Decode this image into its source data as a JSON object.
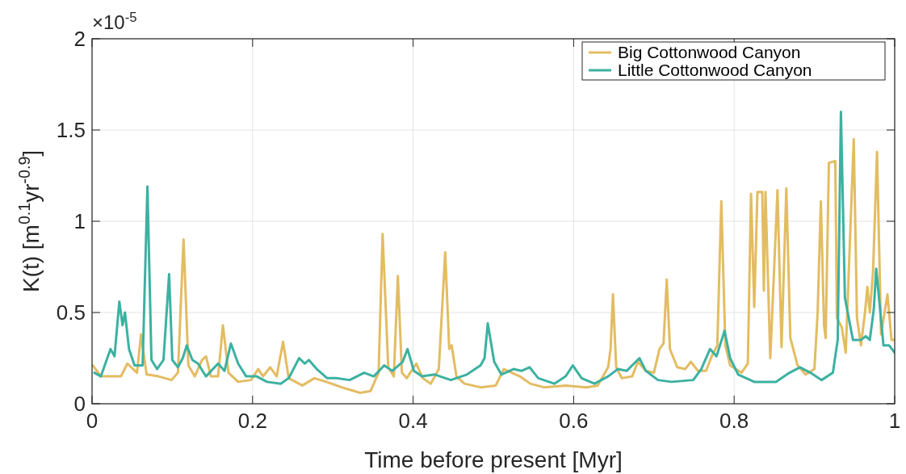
{
  "chart_data": {
    "type": "line",
    "xlabel": "Time before present [Myr]",
    "ylabel": "K(t) [m$^{0.1}$yr$^{-0.9}$]",
    "annotations": [
      "×10$^{-5}$"
    ],
    "xlim": [
      0,
      1
    ],
    "xticks": [
      0,
      0.2,
      0.4,
      0.6,
      0.8,
      1
    ],
    "ylim": [
      0,
      2
    ],
    "yticks": [
      0,
      0.5,
      1,
      1.5,
      2
    ],
    "grid": true,
    "legend": "top right",
    "line_style": "solid",
    "marker": "none",
    "series": [
      {
        "name": "Big Cottonwood Canyon",
        "color": "#e3bc62",
        "x": [
          0.001,
          0.011,
          0.036,
          0.044,
          0.056,
          0.061,
          0.068,
          0.083,
          0.099,
          0.107,
          0.114,
          0.12,
          0.128,
          0.137,
          0.142,
          0.148,
          0.157,
          0.163,
          0.17,
          0.182,
          0.198,
          0.207,
          0.213,
          0.222,
          0.23,
          0.238,
          0.245,
          0.262,
          0.277,
          0.292,
          0.311,
          0.334,
          0.347,
          0.357,
          0.362,
          0.369,
          0.376,
          0.381,
          0.386,
          0.392,
          0.404,
          0.412,
          0.422,
          0.432,
          0.44,
          0.445,
          0.448,
          0.454,
          0.464,
          0.484,
          0.503,
          0.513,
          0.533,
          0.546,
          0.563,
          0.59,
          0.616,
          0.63,
          0.643,
          0.646,
          0.649,
          0.653,
          0.66,
          0.673,
          0.68,
          0.69,
          0.7,
          0.707,
          0.712,
          0.716,
          0.72,
          0.729,
          0.739,
          0.746,
          0.755,
          0.765,
          0.772,
          0.779,
          0.784,
          0.789,
          0.795,
          0.809,
          0.817,
          0.821,
          0.825,
          0.829,
          0.835,
          0.837,
          0.839,
          0.845,
          0.854,
          0.859,
          0.865,
          0.87,
          0.879,
          0.889,
          0.9,
          0.904,
          0.908,
          0.912,
          0.914,
          0.918,
          0.926,
          0.928,
          0.934,
          0.939,
          0.949,
          0.953,
          0.958,
          0.963,
          0.966,
          0.969,
          0.973,
          0.978,
          0.983,
          0.991,
          0.996,
          1.0
        ],
        "values": [
          0.21,
          0.15,
          0.15,
          0.22,
          0.17,
          0.38,
          0.16,
          0.15,
          0.13,
          0.17,
          0.9,
          0.21,
          0.15,
          0.24,
          0.26,
          0.15,
          0.15,
          0.43,
          0.17,
          0.12,
          0.13,
          0.19,
          0.15,
          0.2,
          0.15,
          0.34,
          0.14,
          0.1,
          0.14,
          0.12,
          0.09,
          0.06,
          0.07,
          0.17,
          0.93,
          0.2,
          0.15,
          0.7,
          0.17,
          0.14,
          0.22,
          0.14,
          0.11,
          0.19,
          0.83,
          0.3,
          0.32,
          0.15,
          0.11,
          0.09,
          0.1,
          0.19,
          0.15,
          0.11,
          0.09,
          0.1,
          0.09,
          0.1,
          0.2,
          0.3,
          0.6,
          0.2,
          0.14,
          0.15,
          0.23,
          0.18,
          0.17,
          0.3,
          0.33,
          0.68,
          0.3,
          0.2,
          0.19,
          0.23,
          0.18,
          0.18,
          0.26,
          0.32,
          1.11,
          0.32,
          0.21,
          0.17,
          0.22,
          1.15,
          0.53,
          1.16,
          1.16,
          0.62,
          1.16,
          0.25,
          1.17,
          0.31,
          1.18,
          0.36,
          0.21,
          0.16,
          0.19,
          0.5,
          1.11,
          0.43,
          0.36,
          1.32,
          1.33,
          0.47,
          0.42,
          0.28,
          1.45,
          0.47,
          0.32,
          0.5,
          0.64,
          0.5,
          0.72,
          1.38,
          0.38,
          0.6,
          0.35,
          0.35
        ]
      },
      {
        "name": "Little Cottonwood Canyon",
        "color": "#3cb1a1",
        "x": [
          0.003,
          0.011,
          0.023,
          0.028,
          0.034,
          0.038,
          0.041,
          0.046,
          0.053,
          0.063,
          0.069,
          0.074,
          0.081,
          0.089,
          0.096,
          0.1,
          0.107,
          0.113,
          0.118,
          0.125,
          0.132,
          0.142,
          0.157,
          0.165,
          0.173,
          0.182,
          0.192,
          0.205,
          0.218,
          0.235,
          0.245,
          0.258,
          0.265,
          0.27,
          0.28,
          0.293,
          0.304,
          0.321,
          0.339,
          0.351,
          0.364,
          0.374,
          0.387,
          0.393,
          0.401,
          0.411,
          0.427,
          0.447,
          0.467,
          0.484,
          0.489,
          0.493,
          0.501,
          0.51,
          0.525,
          0.535,
          0.545,
          0.556,
          0.576,
          0.59,
          0.599,
          0.61,
          0.626,
          0.643,
          0.655,
          0.666,
          0.682,
          0.69,
          0.705,
          0.722,
          0.749,
          0.759,
          0.77,
          0.778,
          0.788,
          0.795,
          0.805,
          0.825,
          0.852,
          0.869,
          0.882,
          0.895,
          0.909,
          0.923,
          0.929,
          0.933,
          0.938,
          0.948,
          0.958,
          0.964,
          0.969,
          0.974,
          0.977,
          0.986,
          0.993,
          1.0
        ],
        "values": [
          0.17,
          0.15,
          0.3,
          0.26,
          0.56,
          0.43,
          0.5,
          0.3,
          0.21,
          0.21,
          1.19,
          0.24,
          0.19,
          0.24,
          0.71,
          0.24,
          0.2,
          0.25,
          0.32,
          0.24,
          0.22,
          0.15,
          0.22,
          0.18,
          0.33,
          0.22,
          0.15,
          0.15,
          0.12,
          0.11,
          0.14,
          0.25,
          0.22,
          0.24,
          0.19,
          0.14,
          0.14,
          0.13,
          0.17,
          0.15,
          0.21,
          0.18,
          0.23,
          0.3,
          0.18,
          0.15,
          0.16,
          0.13,
          0.16,
          0.21,
          0.25,
          0.44,
          0.23,
          0.16,
          0.19,
          0.18,
          0.2,
          0.14,
          0.11,
          0.15,
          0.21,
          0.14,
          0.11,
          0.15,
          0.19,
          0.18,
          0.25,
          0.18,
          0.13,
          0.12,
          0.13,
          0.19,
          0.3,
          0.26,
          0.4,
          0.25,
          0.16,
          0.12,
          0.12,
          0.17,
          0.2,
          0.17,
          0.13,
          0.17,
          0.35,
          1.6,
          0.58,
          0.35,
          0.35,
          0.37,
          0.35,
          0.52,
          0.74,
          0.32,
          0.32,
          0.28
        ]
      }
    ]
  }
}
